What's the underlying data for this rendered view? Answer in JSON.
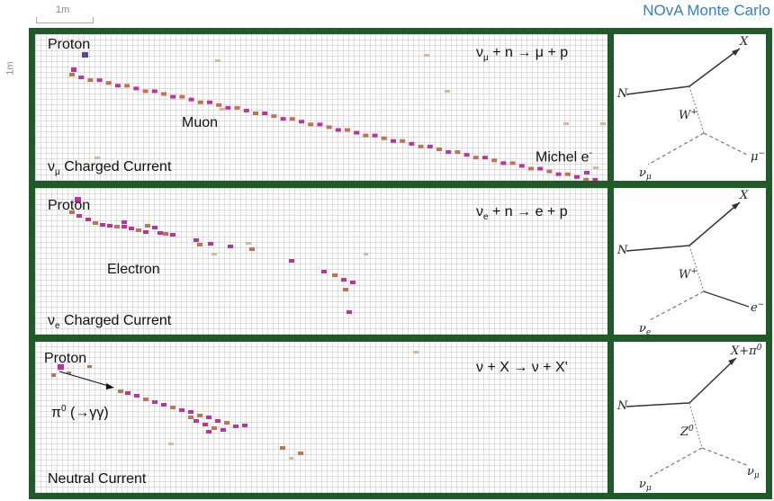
{
  "header": {
    "scale_h": "1m",
    "scale_v": "1m",
    "title": "NOvA Monte Carlo"
  },
  "panels": [
    {
      "label_proton": "Proton",
      "equation": "νₚ + n → μ + p",
      "particle": "Muon",
      "extra": "Michel e",
      "extra_sup": "-",
      "footer_pre": "ν",
      "footer_sub": "μ",
      "footer_post": " Charged Current",
      "diagram": {
        "in": "N",
        "out": "X",
        "boson": "W",
        "boson_sup": "+",
        "lepton_in": "ν",
        "lepton_in_sub": "μ",
        "lepton_out": "μ",
        "lepton_out_sup": "−"
      }
    },
    {
      "label_proton": "Proton",
      "equation": "νₑ + n → e + p",
      "particle": "Electron",
      "footer_pre": "ν",
      "footer_sub": "e",
      "footer_post": " Charged Current",
      "diagram": {
        "in": "N",
        "out": "X",
        "boson": "W",
        "boson_sup": "+",
        "lepton_in": "ν",
        "lepton_in_sub": "e",
        "lepton_out": "e",
        "lepton_out_sup": "−"
      }
    },
    {
      "label_proton": "Proton",
      "equation": "ν + X → ν + X'",
      "particle": "π",
      "particle_sup": "0",
      "particle_post": " (→γγ)",
      "footer_pre": "Neutral Current",
      "diagram": {
        "in": "N",
        "out": "X+π",
        "out_sup": "0",
        "boson": "Z",
        "boson_sup": "0",
        "lepton_in": "ν",
        "lepton_in_sub": "μ",
        "lepton_out": "ν",
        "lepton_out_sub": "μ"
      }
    }
  ],
  "colors": {
    "frame": "#1f5a28",
    "title": "#2e7fd0",
    "hit_high": "#c030a0",
    "hit_low": "#c87050",
    "hit_faint": "#d8b89a"
  }
}
